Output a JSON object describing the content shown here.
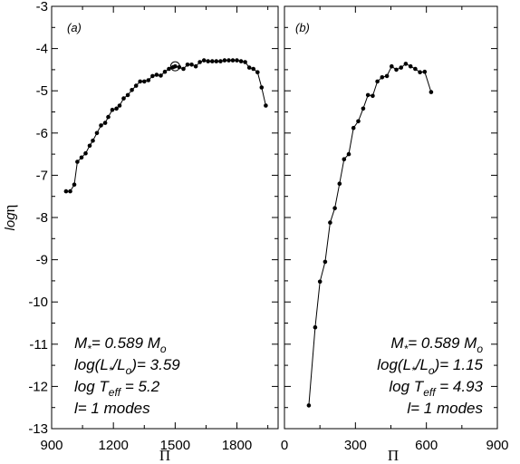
{
  "chart_data": {
    "type": "line",
    "ylabel": {
      "prefix": "log",
      "symbol": "η"
    },
    "ylim": [
      -13,
      -3
    ],
    "yticks": [
      -3,
      -4,
      -5,
      -6,
      -7,
      -8,
      -9,
      -10,
      -11,
      -12,
      -13
    ],
    "panels": [
      {
        "tag": "(a)",
        "xlabel": "Π",
        "xlim": [
          900,
          2000
        ],
        "xticks": [
          900,
          1200,
          1500,
          1800
        ],
        "annotation": {
          "mass": {
            "prefix": "M",
            "sub": "*",
            "mid": "= 0.589 M",
            "sub2": "o"
          },
          "lum": {
            "open": "log(L",
            "sub": "*",
            "slash": "/L",
            "sub2": "o",
            "close": ")= 3.59"
          },
          "teff": {
            "prefix": "log T",
            "sub": "eff",
            "suffix": " = 5.2"
          },
          "modes": "l= 1 modes"
        },
        "highlight": {
          "x": 1500,
          "y": -4.42
        },
        "series": [
          {
            "x": [
              970,
              990,
              1010,
              1025,
              1045,
              1065,
              1085,
              1100,
              1120,
              1140,
              1160,
              1175,
              1195,
              1215,
              1230,
              1250,
              1270,
              1290,
              1310,
              1330,
              1350,
              1370,
              1390,
              1410,
              1430,
              1450,
              1470,
              1490,
              1500,
              1520,
              1540,
              1560,
              1580,
              1600,
              1620,
              1640,
              1660,
              1680,
              1700,
              1720,
              1740,
              1760,
              1780,
              1800,
              1820,
              1840,
              1860,
              1880,
              1900,
              1920,
              1940
            ],
            "y": [
              -7.38,
              -7.38,
              -7.22,
              -6.68,
              -6.58,
              -6.48,
              -6.3,
              -6.18,
              -6.0,
              -5.82,
              -5.76,
              -5.62,
              -5.45,
              -5.42,
              -5.35,
              -5.18,
              -5.1,
              -4.98,
              -4.88,
              -4.78,
              -4.78,
              -4.75,
              -4.65,
              -4.62,
              -4.64,
              -4.55,
              -4.48,
              -4.44,
              -4.42,
              -4.44,
              -4.48,
              -4.38,
              -4.38,
              -4.42,
              -4.32,
              -4.28,
              -4.3,
              -4.3,
              -4.3,
              -4.3,
              -4.28,
              -4.28,
              -4.28,
              -4.28,
              -4.3,
              -4.32,
              -4.45,
              -4.48,
              -4.56,
              -4.92,
              -5.35
            ]
          }
        ]
      },
      {
        "tag": "(b)",
        "xlabel": "Π",
        "xlim": [
          0,
          900
        ],
        "xticks": [
          0,
          300,
          600,
          900
        ],
        "annotation": {
          "mass": {
            "prefix": "M",
            "sub": "*",
            "mid": "= 0.589 M",
            "sub2": "o"
          },
          "lum": {
            "open": "log(L",
            "sub": "*",
            "slash": "/L",
            "sub2": "o",
            "close": ")= 1.15"
          },
          "teff": {
            "prefix": "log T",
            "sub": "eff",
            "suffix": " = 4.93"
          },
          "modes": "l= 1 modes"
        },
        "series": [
          {
            "x": [
              103,
              130,
              150,
              172,
              193,
              213,
              233,
              252,
              272,
              292,
              312,
              333,
              353,
              373,
              393,
              413,
              433,
              453,
              473,
              493,
              513,
              533,
              553,
              573,
              593,
              620
            ],
            "y": [
              -12.45,
              -10.6,
              -9.52,
              -9.05,
              -8.12,
              -7.78,
              -7.2,
              -6.62,
              -6.5,
              -5.88,
              -5.72,
              -5.42,
              -5.1,
              -5.12,
              -4.78,
              -4.68,
              -4.65,
              -4.42,
              -4.5,
              -4.45,
              -4.36,
              -4.42,
              -4.48,
              -4.56,
              -4.55,
              -5.03
            ]
          }
        ]
      }
    ]
  }
}
